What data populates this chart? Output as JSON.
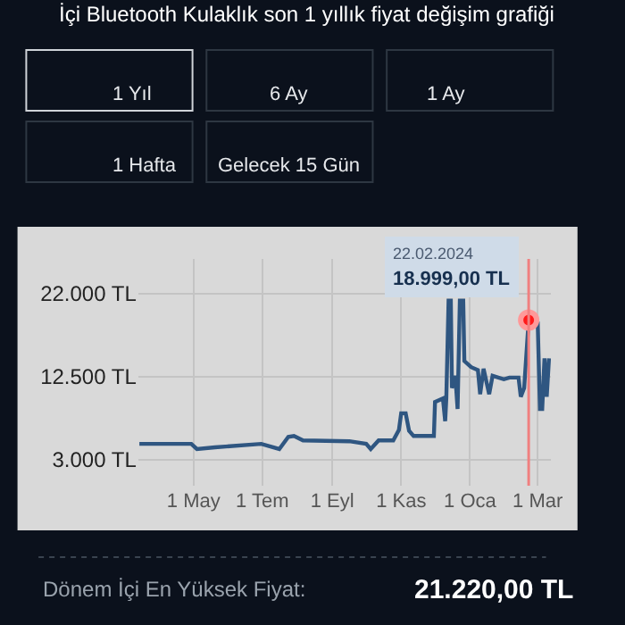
{
  "chart_data": {
    "type": "line",
    "title": "İçi Bluetooth Kulaklık son 1 yıllık fiyat değişim grafiği",
    "x": [
      "2023-03-14",
      "2023-04-29",
      "2023-05-04",
      "2023-05-20",
      "2023-06-30",
      "2023-07-16",
      "2023-07-24",
      "2023-07-29",
      "2023-08-06",
      "2023-09-16",
      "2023-10-01",
      "2023-10-05",
      "2023-10-12",
      "2023-10-25",
      "2023-10-30",
      "2023-11-01",
      "2023-11-05",
      "2023-11-08",
      "2023-11-12",
      "2023-11-30",
      "2023-12-01",
      "2023-12-08",
      "2023-12-10",
      "2023-12-11",
      "2023-12-13",
      "2023-12-15",
      "2023-12-16",
      "2023-12-19",
      "2023-12-21",
      "2023-12-23",
      "2023-12-26",
      "2023-12-27",
      "2024-01-02",
      "2024-01-08",
      "2024-01-10",
      "2024-01-13",
      "2024-01-18",
      "2024-01-21",
      "2024-01-31",
      "2024-02-05",
      "2024-02-13",
      "2024-02-15",
      "2024-02-18",
      "2024-02-22",
      "2024-02-27",
      "2024-03-01",
      "2024-03-03",
      "2024-03-05",
      "2024-03-07",
      "2024-03-09",
      "2024-03-11"
    ],
    "series": [
      {
        "color": "#2f5681",
        "values": [
          4800,
          4800,
          4200,
          4400,
          4800,
          4200,
          5600,
          5700,
          5200,
          5100,
          4800,
          4200,
          5200,
          5200,
          6400,
          8300,
          8300,
          6300,
          5700,
          5700,
          9600,
          10000,
          7400,
          10000,
          21220,
          21220,
          11200,
          12600,
          8800,
          21220,
          21220,
          14300,
          13600,
          13250,
          10500,
          13400,
          10500,
          12600,
          12200,
          12400,
          12400,
          10200,
          11200,
          18999,
          19000,
          18700,
          8800,
          8800,
          14600,
          10200,
          14600
        ]
      }
    ],
    "xlim": [
      "2023-03-13",
      "2024-03-13"
    ],
    "xticks": [
      {
        "value": "2023-05-01",
        "label": "1 May"
      },
      {
        "value": "2023-07-01",
        "label": "1 Tem"
      },
      {
        "value": "2023-09-01",
        "label": "1 Eyl"
      },
      {
        "value": "2023-11-01",
        "label": "1 Kas"
      },
      {
        "value": "2024-01-01",
        "label": "1 Oca"
      },
      {
        "value": "2024-03-01",
        "label": "1 Mar"
      }
    ],
    "ylim": [
      0,
      26000
    ],
    "yticks": [
      {
        "value": 3000,
        "label": "3.000 TL"
      },
      {
        "value": 12500,
        "label": "12.500 TL"
      },
      {
        "value": 22000,
        "label": "22.000 TL"
      }
    ],
    "grid": true,
    "ref_lines": [
      {
        "axis": "x",
        "value": "2024-02-22",
        "color": "#f08080"
      }
    ],
    "annotations": [
      "1 Yıl",
      "6 Ay",
      "1 Ay",
      "1 Hafta",
      "Gelecek 15 Gün",
      {
        "text": "22.02.2024\n18.999,00 TL",
        "x": "2024-02-22",
        "y": 18999
      },
      "Dönem İçi En Yüksek Fiyat:",
      "21.220,00 TL"
    ]
  }
}
